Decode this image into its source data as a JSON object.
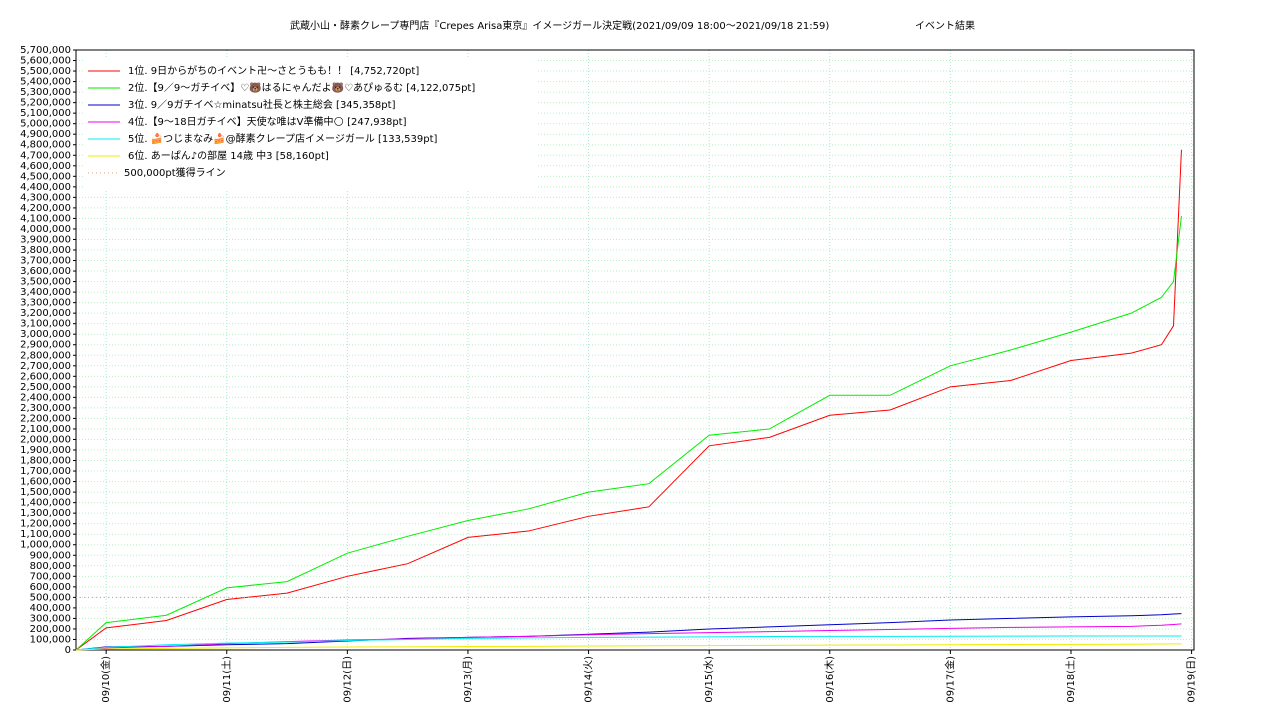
{
  "chart_data": {
    "type": "line",
    "title": "武蔵小山・酵素クレープ専門店『Crepes Arisa東京』イメージガール決定戦(2021/09/09 18:00～2021/09/18 21:59)",
    "subtitle": "イベント結果",
    "x": [
      9.75,
      10,
      10.5,
      11,
      11.5,
      12,
      12.5,
      13,
      13.5,
      14,
      14.5,
      15,
      15.5,
      16,
      16.5,
      17,
      17.5,
      18,
      18.5,
      18.75,
      18.85,
      18.916
    ],
    "xlim": [
      9.75,
      19.02
    ],
    "xticks": [
      {
        "value": 10,
        "label": "09/10(金)"
      },
      {
        "value": 11,
        "label": "09/11(土)"
      },
      {
        "value": 12,
        "label": "09/12(日)"
      },
      {
        "value": 13,
        "label": "09/13(月)"
      },
      {
        "value": 14,
        "label": "09/14(火)"
      },
      {
        "value": 15,
        "label": "09/15(水)"
      },
      {
        "value": 16,
        "label": "09/16(木)"
      },
      {
        "value": 17,
        "label": "09/17(金)"
      },
      {
        "value": 18,
        "label": "09/18(土)"
      },
      {
        "value": 19,
        "label": "09/19(日)"
      }
    ],
    "ylim": [
      0,
      5700000
    ],
    "yticks": [
      0,
      {
        "value": 100000,
        "label": "100,000"
      },
      {
        "value": 200000,
        "label": "200,000"
      },
      {
        "value": 300000,
        "label": "300,000"
      },
      {
        "value": 400000,
        "label": "400,000"
      },
      {
        "value": 500000,
        "label": "500,000"
      },
      {
        "value": 600000,
        "label": "600,000"
      },
      {
        "value": 700000,
        "label": "700,000"
      },
      {
        "value": 800000,
        "label": "800,000"
      },
      {
        "value": 900000,
        "label": "900,000"
      },
      {
        "value": 1000000,
        "label": "1,000,000"
      },
      {
        "value": 1100000,
        "label": "1,100,000"
      },
      {
        "value": 1200000,
        "label": "1,200,000"
      },
      {
        "value": 1300000,
        "label": "1,300,000"
      },
      {
        "value": 1400000,
        "label": "1,400,000"
      },
      {
        "value": 1500000,
        "label": "1,500,000"
      },
      {
        "value": 1600000,
        "label": "1,600,000"
      },
      {
        "value": 1700000,
        "label": "1,700,000"
      },
      {
        "value": 1800000,
        "label": "1,800,000"
      },
      {
        "value": 1900000,
        "label": "1,900,000"
      },
      {
        "value": 2000000,
        "label": "2,000,000"
      },
      {
        "value": 2100000,
        "label": "2,100,000"
      },
      {
        "value": 2200000,
        "label": "2,200,000"
      },
      {
        "value": 2300000,
        "label": "2,300,000"
      },
      {
        "value": 2400000,
        "label": "2,400,000"
      },
      {
        "value": 2500000,
        "label": "2,500,000"
      },
      {
        "value": 2600000,
        "label": "2,600,000"
      },
      {
        "value": 2700000,
        "label": "2,700,000"
      },
      {
        "value": 2800000,
        "label": "2,800,000"
      },
      {
        "value": 2900000,
        "label": "2,900,000"
      },
      {
        "value": 3000000,
        "label": "3,000,000"
      },
      {
        "value": 3100000,
        "label": "3,100,000"
      },
      {
        "value": 3200000,
        "label": "3,200,000"
      },
      {
        "value": 3300000,
        "label": "3,300,000"
      },
      {
        "value": 3400000,
        "label": "3,400,000"
      },
      {
        "value": 3500000,
        "label": "3,500,000"
      },
      {
        "value": 3600000,
        "label": "3,600,000"
      },
      {
        "value": 3700000,
        "label": "3,700,000"
      },
      {
        "value": 3800000,
        "label": "3,800,000"
      },
      {
        "value": 3900000,
        "label": "3,900,000"
      },
      {
        "value": 4000000,
        "label": "4,000,000"
      },
      {
        "value": 4100000,
        "label": "4,100,000"
      },
      {
        "value": 4200000,
        "label": "4,200,000"
      },
      {
        "value": 4300000,
        "label": "4,300,000"
      },
      {
        "value": 4400000,
        "label": "4,400,000"
      },
      {
        "value": 4500000,
        "label": "4,500,000"
      },
      {
        "value": 4600000,
        "label": "4,600,000"
      },
      {
        "value": 4700000,
        "label": "4,700,000"
      },
      {
        "value": 4800000,
        "label": "4,800,000"
      },
      {
        "value": 4900000,
        "label": "4,900,000"
      },
      {
        "value": 5000000,
        "label": "5,000,000"
      },
      {
        "value": 5100000,
        "label": "5,100,000"
      },
      {
        "value": 5200000,
        "label": "5,200,000"
      },
      {
        "value": 5300000,
        "label": "5,300,000"
      },
      {
        "value": 5400000,
        "label": "5,400,000"
      },
      {
        "value": 5500000,
        "label": "5,500,000"
      },
      {
        "value": 5600000,
        "label": "5,600,000"
      },
      {
        "value": 5700000,
        "label": "5,700,000"
      }
    ],
    "grid": true,
    "legend": "top-left",
    "series": [
      {
        "name": "1位. 9日からがちのイベント卍〜さとうもも！！ [4,752,720pt]",
        "color": "#ff0000",
        "style": "solid",
        "values": [
          0,
          210000,
          280000,
          480000,
          540000,
          700000,
          820000,
          1070000,
          1130000,
          1270000,
          1360000,
          1940000,
          2020000,
          2230000,
          2280000,
          2500000,
          2560000,
          2750000,
          2820000,
          2900000,
          3080000,
          4752720
        ]
      },
      {
        "name": "2位.【9／9〜ガチイベ】♡🐻はるにゃんだよ🐻♡あぴゅるむ [4,122,075pt]",
        "color": "#00ee00",
        "style": "solid",
        "values": [
          0,
          260000,
          330000,
          590000,
          650000,
          920000,
          1080000,
          1230000,
          1340000,
          1500000,
          1580000,
          2040000,
          2100000,
          2420000,
          2420000,
          2700000,
          2850000,
          3020000,
          3200000,
          3350000,
          3500000,
          4122075
        ]
      },
      {
        "name": "3位. 9／9ガチイベ☆minatsu社長と株主総会 [345,358pt]",
        "color": "#0000cc",
        "style": "solid",
        "values": [
          0,
          30000,
          35000,
          50000,
          60000,
          85000,
          110000,
          120000,
          130000,
          150000,
          170000,
          200000,
          220000,
          240000,
          260000,
          285000,
          300000,
          315000,
          325000,
          335000,
          342000,
          345358
        ]
      },
      {
        "name": "4位.【9〜18日ガチイベ】天使な唯はV準備中🌕 [247,938pt]",
        "color": "#ee00ee",
        "style": "solid",
        "values": [
          0,
          20000,
          35000,
          60000,
          80000,
          95000,
          105000,
          120000,
          130000,
          145000,
          155000,
          165000,
          175000,
          185000,
          195000,
          205000,
          215000,
          220000,
          225000,
          235000,
          242000,
          247938
        ]
      },
      {
        "name": "5位. 🍰つじまなみ🍰@酵素クレープ店イメージガール [133,539pt]",
        "color": "#00eeee",
        "style": "solid",
        "values": [
          0,
          25000,
          50000,
          65000,
          75000,
          90000,
          100000,
          110000,
          115000,
          120000,
          122000,
          125000,
          128000,
          130000,
          130000,
          131000,
          132000,
          133000,
          133000,
          133500,
          133539,
          133539
        ]
      },
      {
        "name": "6位. あーぱん♪の部屋 14歳 中3 [58,160pt]",
        "color": "#eeee00",
        "style": "solid",
        "values": [
          0,
          10000,
          15000,
          20000,
          25000,
          28000,
          30000,
          33000,
          35000,
          38000,
          40000,
          42000,
          44000,
          46000,
          48000,
          50000,
          52000,
          54000,
          55000,
          57000,
          58000,
          58160
        ]
      },
      {
        "name": "500,000pt獲得ライン",
        "color": "#e0a070",
        "style": "dotted",
        "values": [
          500000,
          500000,
          500000,
          500000,
          500000,
          500000,
          500000,
          500000,
          500000,
          500000,
          500000,
          500000,
          500000,
          500000,
          500000,
          500000,
          500000,
          500000,
          500000,
          500000,
          500000,
          500000
        ]
      }
    ]
  }
}
